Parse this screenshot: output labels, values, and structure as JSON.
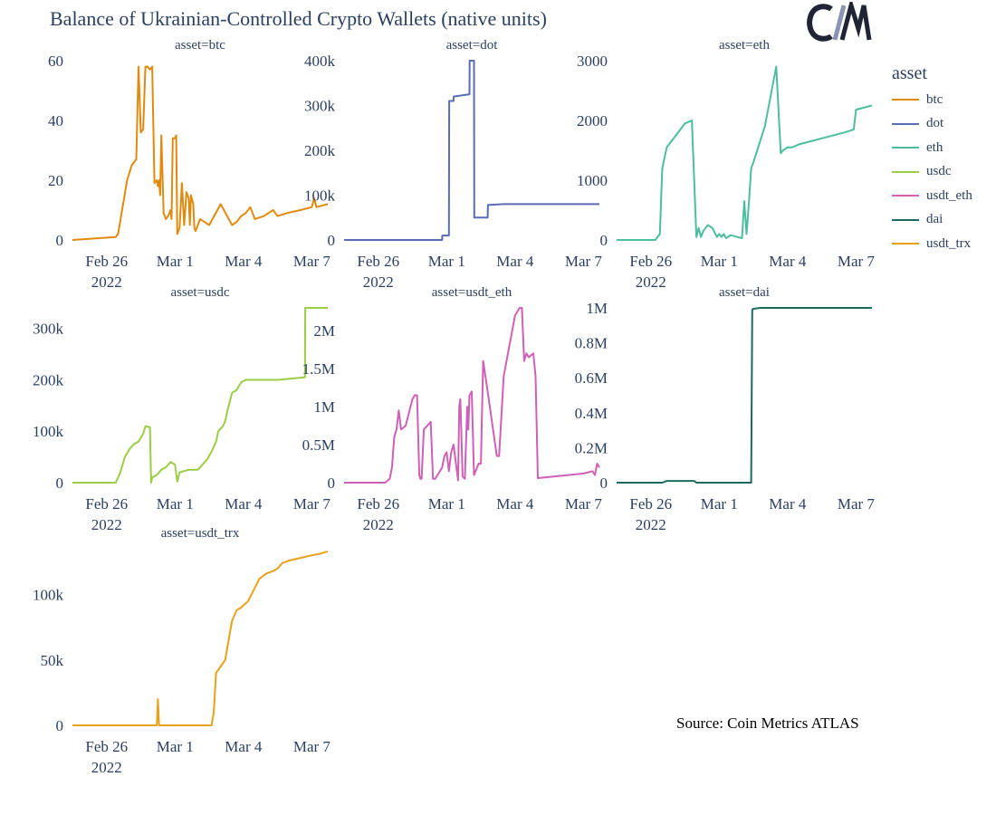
{
  "title": "Balance of Ukrainian-Controlled Crypto Wallets (native units)",
  "logo_text": "CM",
  "source": "Source: Coin Metrics ATLAS",
  "legend": {
    "title": "asset",
    "items": [
      {
        "label": "btc",
        "color": "#e08a0e"
      },
      {
        "label": "dot",
        "color": "#5b6bb5"
      },
      {
        "label": "eth",
        "color": "#4ebd9f"
      },
      {
        "label": "usdc",
        "color": "#9acd45"
      },
      {
        "label": "usdt_eth",
        "color": "#d060b5"
      },
      {
        "label": "dai",
        "color": "#1c6b5e"
      },
      {
        "label": "usdt_trx",
        "color": "#e5a21a"
      }
    ]
  },
  "chart_data": [
    {
      "type": "line",
      "title": "asset=btc",
      "color": "#e08a0e",
      "ylim": [
        0,
        60
      ],
      "yticks": [
        {
          "v": 0,
          "label": "0"
        },
        {
          "v": 20,
          "label": "20"
        },
        {
          "v": 40,
          "label": "40"
        },
        {
          "v": 60,
          "label": "60"
        }
      ],
      "xticks": [
        {
          "v": 1.5,
          "label": "Feb 26",
          "sub": "2022"
        },
        {
          "v": 4.5,
          "label": "Mar 1"
        },
        {
          "v": 7.5,
          "label": "Mar 4"
        },
        {
          "v": 10.5,
          "label": "Mar 7"
        }
      ],
      "xrange": [
        0,
        11.2
      ],
      "x": [
        0,
        1.9,
        2.0,
        2.4,
        2.6,
        2.8,
        2.9,
        3.0,
        3.1,
        3.2,
        3.3,
        3.4,
        3.5,
        3.6,
        3.7,
        3.75,
        3.8,
        3.85,
        3.9,
        4.0,
        4.1,
        4.2,
        4.3,
        4.35,
        4.4,
        4.5,
        4.55,
        4.6,
        4.7,
        4.8,
        4.9,
        5.0,
        5.1,
        5.15,
        5.2,
        5.3,
        5.35,
        5.4,
        5.6,
        6.0,
        6.5,
        7.0,
        7.2,
        7.4,
        7.6,
        7.8,
        8.0,
        8.4,
        8.8,
        9.0,
        9.4,
        10.0,
        10.5,
        10.6,
        10.7,
        11.2
      ],
      "y": [
        0,
        1,
        2,
        20,
        25,
        27,
        58,
        36,
        37,
        58,
        58,
        57,
        58,
        19,
        20,
        18,
        20,
        15,
        35,
        9,
        7,
        8,
        10,
        7,
        34,
        34,
        35,
        2,
        4,
        19,
        5,
        16,
        14,
        5,
        15,
        12,
        4,
        3,
        7,
        5,
        12,
        5,
        6,
        8,
        9,
        11,
        7,
        8,
        10,
        8,
        9,
        10,
        11,
        14,
        11,
        12
      ]
    },
    {
      "type": "line",
      "title": "asset=dot",
      "color": "#5b6bb5",
      "ylim": [
        0,
        400000
      ],
      "yticks": [
        {
          "v": 0,
          "label": "0"
        },
        {
          "v": 100000,
          "label": "100k"
        },
        {
          "v": 200000,
          "label": "200k"
        },
        {
          "v": 300000,
          "label": "300k"
        },
        {
          "v": 400000,
          "label": "400k"
        }
      ],
      "xticks": [
        {
          "v": 1.5,
          "label": "Feb 26",
          "sub": "2022"
        },
        {
          "v": 4.5,
          "label": "Mar 1"
        },
        {
          "v": 7.5,
          "label": "Mar 4"
        },
        {
          "v": 10.5,
          "label": "Mar 7"
        }
      ],
      "xrange": [
        0,
        11.2
      ],
      "x": [
        0,
        4.3,
        4.31,
        4.6,
        4.61,
        4.8,
        4.81,
        5.5,
        5.51,
        5.7,
        5.71,
        6.3,
        6.31,
        7.0,
        11.2
      ],
      "y": [
        0,
        0,
        10000,
        10000,
        310000,
        310000,
        320000,
        325000,
        400000,
        400000,
        50000,
        50000,
        78000,
        80000,
        80000
      ]
    },
    {
      "type": "line",
      "title": "asset=eth",
      "color": "#4ebd9f",
      "ylim": [
        0,
        3000
      ],
      "yticks": [
        {
          "v": 0,
          "label": "0"
        },
        {
          "v": 1000,
          "label": "1000"
        },
        {
          "v": 2000,
          "label": "2000"
        },
        {
          "v": 3000,
          "label": "3000"
        }
      ],
      "xticks": [
        {
          "v": 1.5,
          "label": "Feb 26",
          "sub": "2022"
        },
        {
          "v": 4.5,
          "label": "Mar 1"
        },
        {
          "v": 7.5,
          "label": "Mar 4"
        },
        {
          "v": 10.5,
          "label": "Mar 7"
        }
      ],
      "xrange": [
        0,
        11.2
      ],
      "x": [
        0,
        1.7,
        1.9,
        2.0,
        2.2,
        2.4,
        2.6,
        2.8,
        3.0,
        3.3,
        3.5,
        3.6,
        3.7,
        3.8,
        3.9,
        4.0,
        4.2,
        4.4,
        4.5,
        4.6,
        4.7,
        4.8,
        5.0,
        5.3,
        5.5,
        5.6,
        5.7,
        5.8,
        5.9,
        6.0,
        6.5,
        7.0,
        7.2,
        7.3,
        7.5,
        7.6,
        7.7,
        8.0,
        9.0,
        10.0,
        10.4,
        10.5,
        11.2
      ],
      "y": [
        0,
        0,
        100,
        1200,
        1550,
        1650,
        1750,
        1850,
        1950,
        2000,
        50,
        200,
        50,
        150,
        200,
        250,
        200,
        50,
        100,
        50,
        100,
        30,
        80,
        50,
        30,
        650,
        100,
        600,
        1200,
        1300,
        1900,
        2900,
        1450,
        1500,
        1550,
        1550,
        1550,
        1600,
        1700,
        1800,
        1850,
        2180,
        2250
      ]
    },
    {
      "type": "line",
      "title": "asset=usdc",
      "color": "#9acd45",
      "ylim": [
        0,
        340000
      ],
      "yticks": [
        {
          "v": 0,
          "label": "0"
        },
        {
          "v": 100000,
          "label": "100k"
        },
        {
          "v": 200000,
          "label": "200k"
        },
        {
          "v": 300000,
          "label": "300k"
        }
      ],
      "xticks": [
        {
          "v": 1.5,
          "label": "Feb 26",
          "sub": "2022"
        },
        {
          "v": 4.5,
          "label": "Mar 1"
        },
        {
          "v": 7.5,
          "label": "Mar 4"
        },
        {
          "v": 10.5,
          "label": "Mar 7"
        }
      ],
      "xrange": [
        0,
        11.2
      ],
      "x": [
        0,
        1.9,
        2.1,
        2.3,
        2.5,
        2.7,
        2.9,
        3.1,
        3.2,
        3.4,
        3.45,
        3.5,
        3.7,
        3.9,
        4.1,
        4.3,
        4.5,
        4.6,
        4.7,
        5.1,
        5.5,
        5.7,
        5.9,
        6.1,
        6.3,
        6.4,
        6.6,
        6.7,
        6.8,
        7.0,
        7.2,
        7.4,
        7.6,
        8.0,
        9.0,
        10.2,
        10.21,
        11.2
      ],
      "y": [
        0,
        0,
        20000,
        50000,
        65000,
        75000,
        80000,
        95000,
        110000,
        108000,
        0,
        10000,
        15000,
        25000,
        30000,
        40000,
        35000,
        2000,
        20000,
        25000,
        25000,
        35000,
        45000,
        60000,
        80000,
        100000,
        110000,
        120000,
        140000,
        175000,
        180000,
        195000,
        200000,
        200000,
        200000,
        205000,
        340000,
        340000
      ]
    },
    {
      "type": "line",
      "title": "asset=usdt_eth",
      "color": "#d060b5",
      "ylim": [
        0,
        2300000
      ],
      "yticks": [
        {
          "v": 0,
          "label": "0"
        },
        {
          "v": 500000,
          "label": "0.5M"
        },
        {
          "v": 1000000,
          "label": "1M"
        },
        {
          "v": 1500000,
          "label": "1.5M"
        },
        {
          "v": 2000000,
          "label": "2M"
        }
      ],
      "xticks": [
        {
          "v": 1.5,
          "label": "Feb 26",
          "sub": "2022"
        },
        {
          "v": 4.5,
          "label": "Mar 1"
        },
        {
          "v": 7.5,
          "label": "Mar 4"
        },
        {
          "v": 10.5,
          "label": "Mar 7"
        }
      ],
      "xrange": [
        0,
        11.2
      ],
      "x": [
        0,
        1.8,
        2.0,
        2.1,
        2.2,
        2.3,
        2.4,
        2.5,
        2.7,
        3.0,
        3.1,
        3.2,
        3.3,
        3.35,
        3.4,
        3.5,
        3.8,
        3.9,
        4.0,
        4.1,
        4.3,
        4.4,
        4.5,
        4.6,
        4.7,
        4.8,
        5.0,
        5.05,
        5.1,
        5.2,
        5.3,
        5.4,
        5.45,
        5.5,
        5.6,
        5.7,
        5.9,
        6.0,
        6.1,
        6.3,
        6.7,
        6.8,
        7.0,
        7.5,
        7.7,
        7.8,
        7.9,
        8.0,
        8.1,
        8.3,
        8.4,
        8.5,
        10.5,
        10.9,
        11.0,
        11.1,
        11.2
      ],
      "y": [
        0,
        0,
        50000,
        200000,
        600000,
        700000,
        950000,
        700000,
        750000,
        1100000,
        1150000,
        1150000,
        100000,
        50000,
        50000,
        700000,
        800000,
        50000,
        50000,
        100000,
        200000,
        350000,
        400000,
        150000,
        400000,
        500000,
        30000,
        1000000,
        1100000,
        80000,
        50000,
        1000000,
        700000,
        1150000,
        1200000,
        100000,
        250000,
        250000,
        1600000,
        1200000,
        350000,
        350000,
        1400000,
        2200000,
        2300000,
        2300000,
        1600000,
        1700000,
        1650000,
        1700000,
        1400000,
        60000,
        120000,
        150000,
        100000,
        250000,
        200000
      ]
    },
    {
      "type": "line",
      "title": "asset=dai",
      "color": "#1c6b5e",
      "ylim": [
        0,
        1000000
      ],
      "yticks": [
        {
          "v": 0,
          "label": "0"
        },
        {
          "v": 200000,
          "label": "0.2M"
        },
        {
          "v": 400000,
          "label": "0.4M"
        },
        {
          "v": 600000,
          "label": "0.6M"
        },
        {
          "v": 800000,
          "label": "0.8M"
        },
        {
          "v": 1000000,
          "label": "1M"
        }
      ],
      "xticks": [
        {
          "v": 1.5,
          "label": "Feb 26",
          "sub": "2022"
        },
        {
          "v": 4.5,
          "label": "Mar 1"
        },
        {
          "v": 7.5,
          "label": "Mar 4"
        },
        {
          "v": 10.5,
          "label": "Mar 7"
        }
      ],
      "xrange": [
        0,
        11.2
      ],
      "x": [
        0,
        2.0,
        2.2,
        3.4,
        3.5,
        5.9,
        5.95,
        6.0,
        6.3,
        6.6,
        11.2
      ],
      "y": [
        0,
        0,
        10000,
        10000,
        0,
        0,
        990000,
        995000,
        1000000,
        1000000,
        1000000
      ]
    },
    {
      "type": "line",
      "title": "asset=usdt_trx",
      "color": "#e5a21a",
      "ylim": [
        0,
        135000
      ],
      "yticks": [
        {
          "v": 0,
          "label": "0"
        },
        {
          "v": 50000,
          "label": "50k"
        },
        {
          "v": 100000,
          "label": "100k"
        }
      ],
      "xticks": [
        {
          "v": 1.5,
          "label": "Feb 26",
          "sub": "2022"
        },
        {
          "v": 4.5,
          "label": "Mar 1"
        },
        {
          "v": 7.5,
          "label": "Mar 4"
        },
        {
          "v": 10.5,
          "label": "Mar 7"
        }
      ],
      "xrange": [
        0,
        11.2
      ],
      "x": [
        0,
        3.7,
        3.75,
        3.8,
        4.5,
        6.1,
        6.2,
        6.3,
        6.5,
        6.7,
        6.9,
        7.0,
        7.2,
        7.4,
        7.7,
        8.0,
        8.2,
        8.5,
        8.8,
        9.0,
        9.2,
        9.5,
        10.0,
        10.5,
        10.8,
        11.2
      ],
      "y": [
        0,
        0,
        20000,
        0,
        0,
        0,
        10000,
        40000,
        45000,
        50000,
        70000,
        80000,
        88000,
        90000,
        95000,
        105000,
        112000,
        116000,
        118000,
        120000,
        124000,
        126000,
        128000,
        130000,
        131000,
        133000
      ]
    }
  ]
}
